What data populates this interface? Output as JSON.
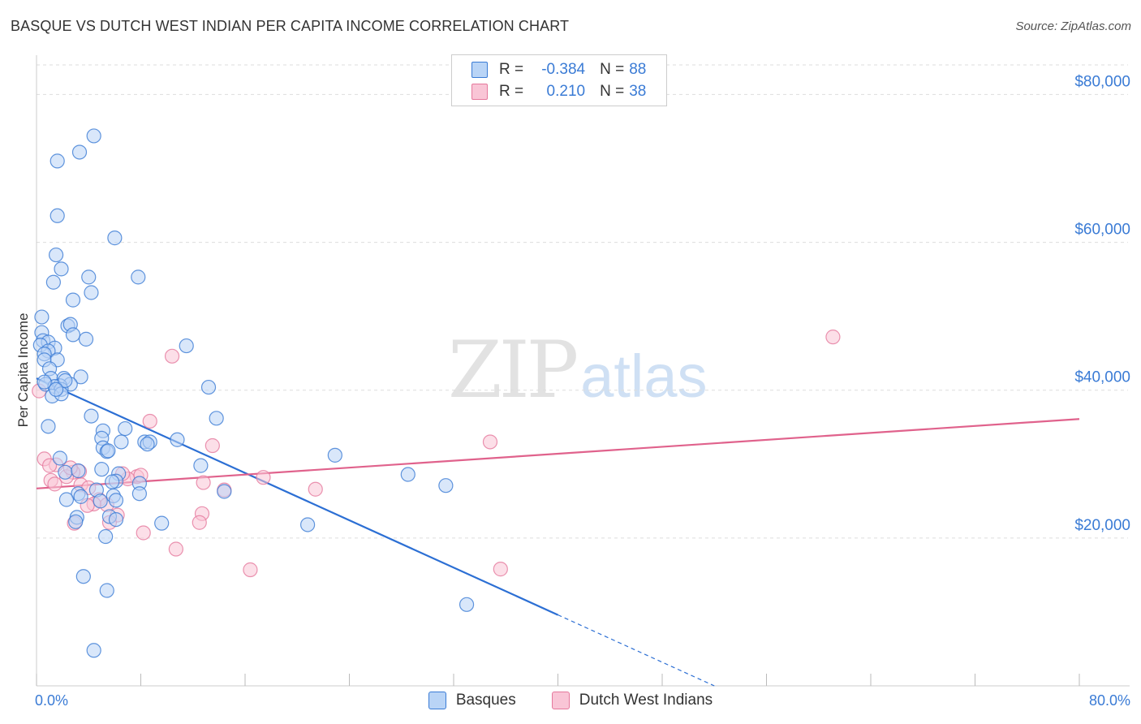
{
  "title": "BASQUE VS DUTCH WEST INDIAN PER CAPITA INCOME CORRELATION CHART",
  "source": "Source: ZipAtlas.com",
  "watermark": {
    "zip": "ZIP",
    "atlas": "atlas"
  },
  "colors": {
    "basque_fill": "#b9d4f6",
    "basque_stroke": "#3a7bd5",
    "basque_line": "#2c6fd4",
    "dwi_fill": "#f9c5d6",
    "dwi_stroke": "#e5789c",
    "dwi_line": "#e0628c",
    "axis_label": "#3a7bd5",
    "grid": "#dddddd"
  },
  "legend": {
    "rows": [
      {
        "r_label": "R =",
        "r_value": "-0.384",
        "n_label": "N =",
        "n_value": "88"
      },
      {
        "r_label": "R =",
        "r_value": " 0.210",
        "n_label": "N =",
        "n_value": "38"
      }
    ]
  },
  "bottom_legend": {
    "basque": "Basques",
    "dwi": "Dutch West Indians"
  },
  "chart_data": {
    "type": "scatter",
    "title": "BASQUE VS DUTCH WEST INDIAN PER CAPITA INCOME CORRELATION CHART",
    "xlabel": "",
    "ylabel": "Per Capita Income",
    "xlim": [
      0,
      80
    ],
    "ylim": [
      0,
      84000
    ],
    "x_tick_labels": [
      "0.0%",
      "80.0%"
    ],
    "y_ticks": [
      20000,
      40000,
      60000,
      80000
    ],
    "y_tick_labels": [
      "$20,000",
      "$40,000",
      "$60,000",
      "$80,000"
    ],
    "grid": "horizontal dashed",
    "legend_position": "top-center",
    "series": [
      {
        "name": "Basques",
        "points": [
          [
            4.4,
            74400
          ],
          [
            3.3,
            72200
          ],
          [
            1.6,
            71000
          ],
          [
            6.0,
            60600
          ],
          [
            1.6,
            63600
          ],
          [
            1.5,
            58300
          ],
          [
            1.9,
            56400
          ],
          [
            1.3,
            54600
          ],
          [
            7.8,
            55300
          ],
          [
            4.0,
            55300
          ],
          [
            4.2,
            53200
          ],
          [
            2.8,
            52200
          ],
          [
            0.4,
            49900
          ],
          [
            2.4,
            48700
          ],
          [
            2.6,
            48900
          ],
          [
            0.4,
            47800
          ],
          [
            2.8,
            47500
          ],
          [
            3.8,
            46900
          ],
          [
            0.5,
            46700
          ],
          [
            0.9,
            46500
          ],
          [
            0.3,
            46100
          ],
          [
            1.4,
            45700
          ],
          [
            11.5,
            46000
          ],
          [
            0.9,
            45300
          ],
          [
            0.6,
            44900
          ],
          [
            0.6,
            44100
          ],
          [
            1.6,
            44100
          ],
          [
            1.0,
            42900
          ],
          [
            1.1,
            41600
          ],
          [
            2.1,
            41600
          ],
          [
            3.4,
            41800
          ],
          [
            0.7,
            40800
          ],
          [
            2.6,
            40800
          ],
          [
            1.8,
            40600
          ],
          [
            1.4,
            40500
          ],
          [
            1.9,
            40100
          ],
          [
            13.2,
            40400
          ],
          [
            1.2,
            39200
          ],
          [
            1.9,
            39500
          ],
          [
            4.2,
            36500
          ],
          [
            0.9,
            35100
          ],
          [
            5.1,
            34500
          ],
          [
            6.8,
            34800
          ],
          [
            5.0,
            33500
          ],
          [
            6.5,
            33000
          ],
          [
            8.3,
            33000
          ],
          [
            8.7,
            33000
          ],
          [
            8.5,
            32700
          ],
          [
            10.8,
            33300
          ],
          [
            5.1,
            32200
          ],
          [
            5.4,
            31700
          ],
          [
            5.5,
            31800
          ],
          [
            22.9,
            31200
          ],
          [
            1.8,
            30800
          ],
          [
            12.6,
            29800
          ],
          [
            5.0,
            29300
          ],
          [
            2.2,
            28900
          ],
          [
            3.2,
            29100
          ],
          [
            6.3,
            28700
          ],
          [
            28.5,
            28600
          ],
          [
            6.1,
            27700
          ],
          [
            7.9,
            27400
          ],
          [
            5.8,
            27600
          ],
          [
            31.4,
            27100
          ],
          [
            4.6,
            26500
          ],
          [
            14.4,
            26300
          ],
          [
            3.2,
            26000
          ],
          [
            5.9,
            25700
          ],
          [
            7.9,
            26000
          ],
          [
            2.3,
            25200
          ],
          [
            3.4,
            25600
          ],
          [
            4.9,
            25000
          ],
          [
            6.1,
            25100
          ],
          [
            3.1,
            22800
          ],
          [
            5.6,
            22900
          ],
          [
            3.0,
            22200
          ],
          [
            6.1,
            22500
          ],
          [
            9.6,
            22000
          ],
          [
            20.8,
            21800
          ],
          [
            5.3,
            20200
          ],
          [
            3.6,
            14800
          ],
          [
            5.4,
            12900
          ],
          [
            33.0,
            11000
          ],
          [
            4.4,
            4800
          ],
          [
            13.8,
            36200
          ],
          [
            0.6,
            41100
          ],
          [
            2.2,
            41300
          ],
          [
            1.5,
            40100
          ]
        ]
      },
      {
        "name": "Dutch West Indians",
        "points": [
          [
            61.1,
            47200
          ],
          [
            10.4,
            44600
          ],
          [
            8.7,
            35800
          ],
          [
            0.2,
            39900
          ],
          [
            0.6,
            30700
          ],
          [
            13.5,
            32500
          ],
          [
            34.8,
            33000
          ],
          [
            1.5,
            29900
          ],
          [
            3.3,
            29000
          ],
          [
            2.8,
            28900
          ],
          [
            2.3,
            28300
          ],
          [
            7.7,
            28300
          ],
          [
            17.4,
            28200
          ],
          [
            1.1,
            27800
          ],
          [
            1.4,
            27300
          ],
          [
            3.4,
            27200
          ],
          [
            7.0,
            28000
          ],
          [
            12.8,
            27500
          ],
          [
            4.0,
            26800
          ],
          [
            21.4,
            26600
          ],
          [
            14.4,
            26500
          ],
          [
            4.8,
            25200
          ],
          [
            5.4,
            24500
          ],
          [
            4.4,
            24600
          ],
          [
            12.7,
            23300
          ],
          [
            6.2,
            23100
          ],
          [
            12.5,
            22100
          ],
          [
            2.9,
            22000
          ],
          [
            8.2,
            20700
          ],
          [
            10.7,
            18500
          ],
          [
            16.4,
            15700
          ],
          [
            35.6,
            15800
          ],
          [
            1.0,
            29800
          ],
          [
            2.6,
            29500
          ],
          [
            6.6,
            28700
          ],
          [
            8.0,
            28500
          ],
          [
            3.9,
            24400
          ],
          [
            5.6,
            22100
          ]
        ]
      }
    ],
    "trendlines": [
      {
        "series": "Basques",
        "x0": 0,
        "y0": 41600,
        "x1": 40,
        "y1": 9600,
        "dashed_to": [
          52,
          0
        ]
      },
      {
        "series": "Dutch West Indians",
        "x0": 0,
        "y0": 26700,
        "x1": 80,
        "y1": 36100
      }
    ]
  }
}
